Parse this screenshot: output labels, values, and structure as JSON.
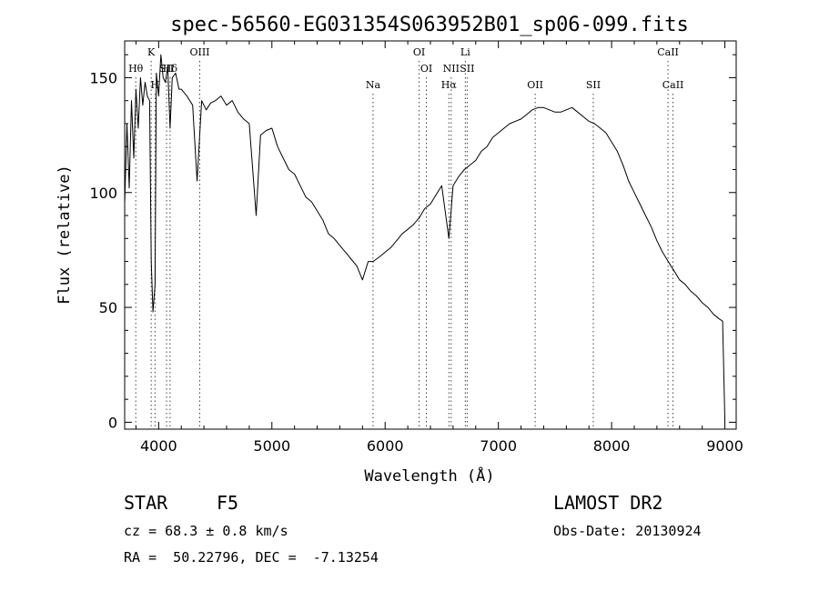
{
  "chart_data": {
    "type": "line",
    "title": "spec-56560-EG031354S063952B01_sp06-099.fits",
    "xlabel": "Wavelength (Å)",
    "ylabel": "Flux (relative)",
    "xlim": [
      3700,
      9100
    ],
    "ylim": [
      -3,
      166
    ],
    "xticks": [
      4000,
      5000,
      6000,
      7000,
      8000,
      9000
    ],
    "yticks": [
      0,
      50,
      100,
      150
    ],
    "grid": false,
    "line_color": "#000000",
    "marker_line_color": "#444444",
    "series": [
      {
        "values_x": [
          3700,
          3720,
          3740,
          3760,
          3780,
          3800,
          3820,
          3840,
          3860,
          3880,
          3900,
          3920,
          3935,
          3950,
          3968,
          3980,
          4000,
          4020,
          4040,
          4060,
          4080,
          4101,
          4120,
          4150,
          4180,
          4200,
          4250,
          4300,
          4340,
          4380,
          4420,
          4460,
          4500,
          4550,
          4600,
          4650,
          4700,
          4750,
          4800,
          4861,
          4900,
          4950,
          5000,
          5050,
          5100,
          5150,
          5200,
          5250,
          5300,
          5350,
          5400,
          5450,
          5500,
          5550,
          5600,
          5650,
          5700,
          5750,
          5800,
          5850,
          5893,
          5950,
          6000,
          6050,
          6100,
          6150,
          6200,
          6250,
          6300,
          6350,
          6400,
          6450,
          6500,
          6563,
          6600,
          6650,
          6700,
          6750,
          6800,
          6850,
          6900,
          6950,
          7000,
          7050,
          7100,
          7150,
          7200,
          7250,
          7300,
          7350,
          7400,
          7450,
          7500,
          7550,
          7600,
          7650,
          7700,
          7750,
          7800,
          7850,
          7900,
          7950,
          8000,
          8050,
          8100,
          8150,
          8200,
          8250,
          8300,
          8350,
          8400,
          8450,
          8500,
          8550,
          8600,
          8650,
          8700,
          8750,
          8800,
          8850,
          8900,
          8950,
          8980,
          9000
        ],
        "values_y": [
          95,
          130,
          102,
          140,
          115,
          145,
          128,
          150,
          138,
          148,
          142,
          140,
          70,
          48,
          60,
          152,
          142,
          160,
          150,
          148,
          155,
          128,
          150,
          152,
          145,
          145,
          142,
          138,
          105,
          140,
          136,
          139,
          140,
          142,
          138,
          140,
          135,
          132,
          130,
          90,
          125,
          127,
          128,
          120,
          115,
          110,
          108,
          103,
          98,
          96,
          92,
          88,
          82,
          80,
          77,
          74,
          71,
          68,
          62,
          70,
          70,
          72,
          74,
          76,
          79,
          82,
          84,
          86,
          89,
          93,
          95,
          99,
          103,
          80,
          103,
          107,
          110,
          112,
          114,
          118,
          120,
          124,
          126,
          128,
          130,
          131,
          132,
          134,
          136,
          137,
          137,
          136,
          135,
          135,
          136,
          137,
          135,
          133,
          131,
          130,
          128,
          126,
          122,
          118,
          112,
          105,
          100,
          95,
          90,
          85,
          79,
          74,
          70,
          66,
          62,
          60,
          57,
          55,
          52,
          50,
          47,
          45,
          44,
          0
        ]
      }
    ],
    "line_markers": [
      {
        "label": "Hθ",
        "x": 3798,
        "row": 1
      },
      {
        "label": "K",
        "x": 3934,
        "row": 0
      },
      {
        "label": "H",
        "x": 3968,
        "row": 2
      },
      {
        "label": "SII",
        "x": 4070,
        "row": 1
      },
      {
        "label": "Hδ",
        "x": 4101,
        "row": 1
      },
      {
        "label": "OIII",
        "x": 4363,
        "row": 0
      },
      {
        "label": "Na",
        "x": 5893,
        "row": 2
      },
      {
        "label": "OI",
        "x": 6300,
        "row": 0
      },
      {
        "label": "OI",
        "x": 6364,
        "row": 1
      },
      {
        "label": "Hα",
        "x": 6563,
        "row": 2
      },
      {
        "label": "NII",
        "x": 6583,
        "row": 1
      },
      {
        "label": "Li",
        "x": 6708,
        "row": 0
      },
      {
        "label": "SII",
        "x": 6724,
        "row": 1
      },
      {
        "label": "OII",
        "x": 7325,
        "row": 2
      },
      {
        "label": "SII",
        "x": 7838,
        "row": 2
      },
      {
        "label": "CaII",
        "x": 8498,
        "row": 0
      },
      {
        "label": "CaII",
        "x": 8542,
        "row": 2
      }
    ]
  },
  "info": {
    "class_label": "STAR",
    "subclass": "F5",
    "survey": "LAMOST DR2",
    "cz": "cz = 68.3 ± 0.8 km/s",
    "obs_date": "Obs-Date: 20130924",
    "coords": "RA =  50.22796, DEC =  -7.13254"
  }
}
